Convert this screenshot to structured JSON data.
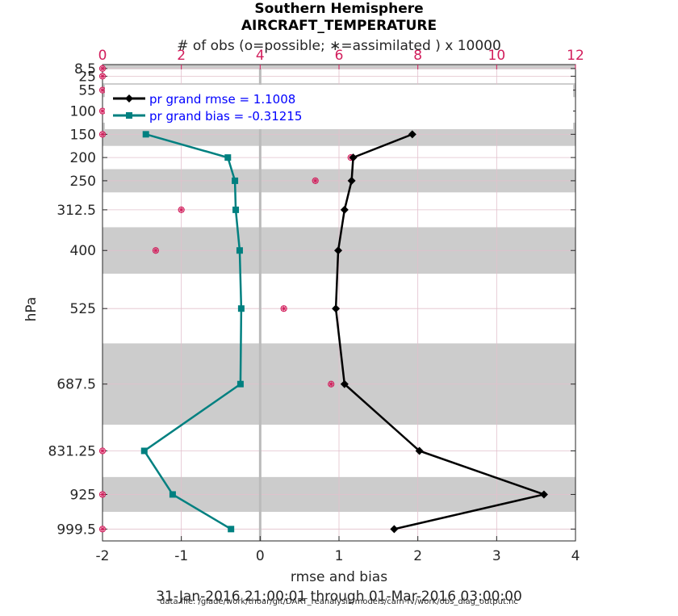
{
  "chart_data": {
    "type": "line",
    "title": "Southern Hemisphere",
    "subtitle": "AIRCRAFT_TEMPERATURE",
    "xlabel": "rmse and bias",
    "ylabel": "hPa",
    "xlim": [
      -2,
      4
    ],
    "x_ticks": [
      "-2",
      "-1",
      "0",
      "1",
      "2",
      "3",
      "4"
    ],
    "top_axis": {
      "label": "# of obs (o=possible; ∗=assimilated ) x 10000",
      "lim": [
        0,
        12
      ],
      "ticks": [
        "0",
        "2",
        "4",
        "6",
        "8",
        "10",
        "12"
      ],
      "color": "#d21e5c"
    },
    "levels": [
      8.5,
      25,
      55,
      100,
      150,
      200,
      250,
      312.5,
      400,
      525,
      687.5,
      831.25,
      925,
      999.5
    ],
    "level_labels": [
      "8.5",
      "25",
      "55",
      "100",
      "150",
      "200",
      "250",
      "312.5",
      "400",
      "525",
      "687.5",
      "831.25",
      "925",
      "999.5"
    ],
    "layer_edges": [
      [
        0,
        10
      ],
      [
        10,
        40
      ],
      [
        40,
        70
      ],
      [
        70,
        125
      ],
      [
        125,
        175
      ],
      [
        175,
        225
      ],
      [
        225,
        275
      ],
      [
        275,
        350
      ],
      [
        350,
        450
      ],
      [
        450,
        600
      ],
      [
        600,
        775
      ],
      [
        775,
        887.5
      ],
      [
        887.5,
        962.5
      ],
      [
        962.5,
        1025
      ]
    ],
    "series": [
      {
        "name": "pr grand rmse = 1.1008",
        "color": "#000000",
        "marker": "diamond",
        "levels": [
          150,
          200,
          250,
          312.5,
          400,
          525,
          687.5,
          831.25,
          925,
          999.5
        ],
        "values": [
          1.93,
          1.18,
          1.16,
          1.07,
          0.99,
          0.96,
          1.07,
          2.02,
          3.6,
          1.7
        ]
      },
      {
        "name": "pr grand bias = -0.31215",
        "color": "#008080",
        "marker": "square",
        "levels": [
          150,
          200,
          250,
          312.5,
          400,
          525,
          687.5,
          831.25,
          925,
          999.5
        ],
        "values": [
          -1.45,
          -0.41,
          -0.32,
          -0.31,
          -0.26,
          -0.24,
          -0.25,
          -1.47,
          -1.11,
          -0.37
        ]
      }
    ],
    "obs_counts": {
      "levels": [
        8.5,
        25,
        55,
        100,
        150,
        200,
        250,
        312.5,
        400,
        525,
        687.5,
        831.25,
        925,
        999.5
      ],
      "possible": [
        0,
        0,
        0,
        0,
        0,
        6.3,
        5.4,
        2.0,
        1.35,
        4.6,
        5.8,
        0,
        0,
        0
      ],
      "assimilated": [
        0,
        0,
        0,
        0,
        0,
        6.3,
        5.4,
        2.0,
        1.35,
        4.6,
        5.8,
        0,
        0,
        0
      ]
    },
    "footer_dates": "31-Jan-2016 21:00:01 through 01-Mar-2016 03:00:00",
    "footer_file": "data file: /glade/work/thoar/git/DART_reanalysis/models/cam-fv/work/obs_diag_output.nc",
    "colors": {
      "shade": "#cccccc",
      "grid": "#e2c0cc",
      "zero_line": "#bbbbbb",
      "obs_marker": "#d21e5c",
      "legend_text": "#0000ff"
    }
  }
}
